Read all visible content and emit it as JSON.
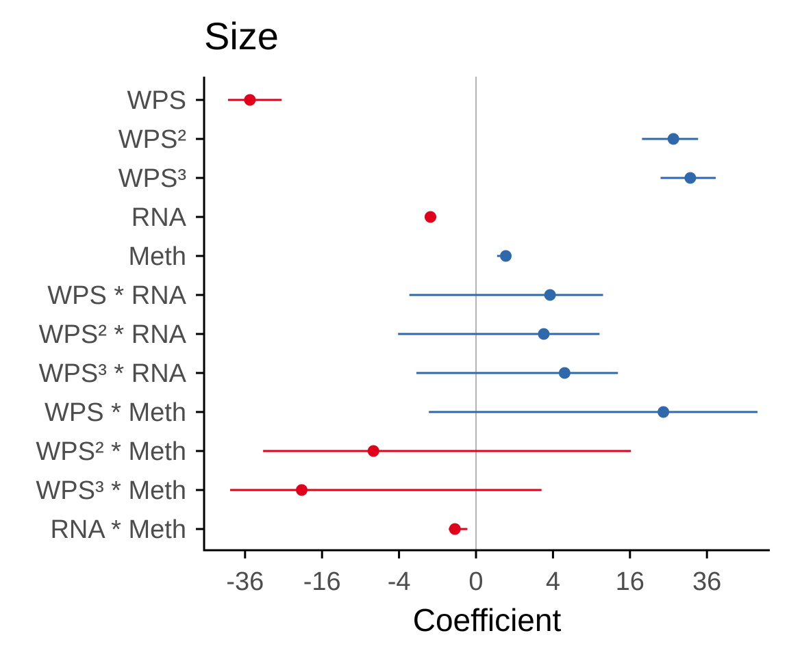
{
  "chart_data": {
    "type": "scatter",
    "title": "Size",
    "xlabel": "Coefficient",
    "ylabel": "",
    "x_scale": "signed-sqrt",
    "xlim": [
      -52,
      62
    ],
    "x_ticks": [
      -36,
      -16,
      -4,
      0,
      4,
      16,
      36
    ],
    "x_tick_labels": [
      "-36",
      "-16",
      "-4",
      "0",
      "4",
      "16",
      "36"
    ],
    "reference_line_x": 0,
    "colors": {
      "negative": "#e0001b",
      "positive": "#3069ab",
      "reference": "#b3b3b3"
    },
    "grid": false,
    "legend": "none",
    "points": [
      {
        "label": "WPS",
        "estimate": -34.5,
        "low": -41.5,
        "high": -25.5,
        "sign": "negative"
      },
      {
        "label": "WPS²",
        "estimate": 26.3,
        "low": 18.6,
        "high": 33.3,
        "sign": "positive"
      },
      {
        "label": "WPS³",
        "estimate": 31.0,
        "low": 23.0,
        "high": 38.8,
        "sign": "positive"
      },
      {
        "label": "RNA",
        "estimate": -1.4,
        "low": -1.4,
        "high": -1.4,
        "sign": "negative"
      },
      {
        "label": "Meth",
        "estimate": 0.6,
        "low": 0.3,
        "high": 0.7,
        "sign": "positive"
      },
      {
        "label": "WPS * RNA",
        "estimate": 3.7,
        "low": -3.0,
        "high": 10.9,
        "sign": "positive"
      },
      {
        "label": "WPS² * RNA",
        "estimate": 3.1,
        "low": -4.1,
        "high": 10.3,
        "sign": "positive"
      },
      {
        "label": "WPS³ * RNA",
        "estimate": 5.3,
        "low": -2.4,
        "high": 13.6,
        "sign": "positive"
      },
      {
        "label": "WPS * Meth",
        "estimate": 23.7,
        "low": -1.5,
        "high": 53.5,
        "sign": "positive"
      },
      {
        "label": "WPS² * Meth",
        "estimate": -7.1,
        "low": -30.6,
        "high": 16.2,
        "sign": "negative"
      },
      {
        "label": "WPS³ * Meth",
        "estimate": -20.5,
        "low": -40.8,
        "high": 2.9,
        "sign": "negative"
      },
      {
        "label": "RNA * Meth",
        "estimate": -0.3,
        "low": -0.5,
        "high": -0.05,
        "sign": "negative"
      }
    ]
  }
}
